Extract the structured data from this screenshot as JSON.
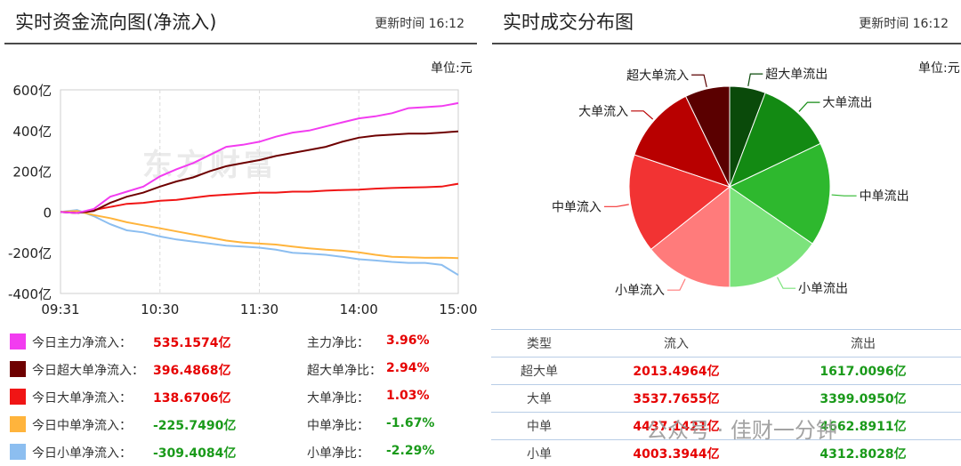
{
  "left": {
    "title": "实时资金流向图(净流入)",
    "update_time": "更新时间 16:12",
    "unit": "单位:元",
    "watermark": "东方财富",
    "legend": [
      {
        "label": "今日主力净流入：",
        "value": "535.1574亿",
        "color": "#f23cf0",
        "ratio_label": "主力净比：",
        "ratio": "3.96%",
        "sign": "pos"
      },
      {
        "label": "今日超大单净流入：",
        "value": "396.4868亿",
        "color": "#6e0000",
        "ratio_label": "超大单净比：",
        "ratio": "2.94%",
        "sign": "pos"
      },
      {
        "label": "今日大单净流入：",
        "value": "138.6706亿",
        "color": "#f01515",
        "ratio_label": "大单净比：",
        "ratio": "1.03%",
        "sign": "pos"
      },
      {
        "label": "今日中单净流入：",
        "value": "-225.7490亿",
        "color": "#ffb43c",
        "ratio_label": "中单净比：",
        "ratio": "-1.67%",
        "sign": "neg"
      },
      {
        "label": "今日小单净流入：",
        "value": "-309.4084亿",
        "color": "#8cbef0",
        "ratio_label": "小单净比：",
        "ratio": "-2.29%",
        "sign": "neg"
      }
    ]
  },
  "chart_data": [
    {
      "type": "line",
      "title": "",
      "x_ticks": [
        "09:31",
        "10:30",
        "11:30",
        "14:00",
        "15:00"
      ],
      "y_ticks": [
        "600亿",
        "400亿",
        "200亿",
        "0",
        "-200亿",
        "-400亿"
      ],
      "ylim": [
        -400,
        600
      ],
      "y_unit": "亿",
      "grid": true,
      "series": [
        {
          "name": "主力净流入",
          "color": "#f23cf0",
          "x": [
            0,
            10,
            20,
            30,
            40,
            50,
            60,
            70,
            80,
            90,
            100,
            110,
            120,
            130,
            140,
            150,
            160,
            170,
            180,
            190,
            200,
            210,
            220,
            230,
            240
          ],
          "values": [
            0,
            -5,
            15,
            75,
            100,
            125,
            175,
            210,
            240,
            280,
            320,
            330,
            345,
            370,
            390,
            400,
            420,
            440,
            460,
            470,
            485,
            510,
            515,
            520,
            535
          ]
        },
        {
          "name": "超大单净流入",
          "color": "#6e0000",
          "x": [
            0,
            10,
            20,
            30,
            40,
            50,
            60,
            70,
            80,
            90,
            100,
            110,
            120,
            130,
            140,
            150,
            160,
            170,
            180,
            190,
            200,
            210,
            220,
            230,
            240
          ],
          "values": [
            0,
            -5,
            5,
            45,
            75,
            95,
            125,
            150,
            170,
            200,
            225,
            240,
            255,
            275,
            290,
            305,
            320,
            345,
            365,
            375,
            380,
            385,
            385,
            390,
            396
          ]
        },
        {
          "name": "大单净流入",
          "color": "#f01515",
          "x": [
            0,
            10,
            20,
            30,
            40,
            50,
            60,
            70,
            80,
            90,
            100,
            110,
            120,
            130,
            140,
            150,
            160,
            170,
            180,
            190,
            200,
            210,
            220,
            230,
            240
          ],
          "values": [
            0,
            -5,
            10,
            25,
            40,
            45,
            55,
            60,
            70,
            80,
            85,
            90,
            95,
            95,
            100,
            100,
            105,
            108,
            110,
            115,
            118,
            120,
            122,
            125,
            139
          ]
        },
        {
          "name": "中单净流入",
          "color": "#ffb43c",
          "x": [
            0,
            10,
            20,
            30,
            40,
            50,
            60,
            70,
            80,
            90,
            100,
            110,
            120,
            130,
            140,
            150,
            160,
            170,
            180,
            190,
            200,
            210,
            220,
            230,
            240
          ],
          "values": [
            0,
            5,
            -15,
            -30,
            -50,
            -65,
            -80,
            -95,
            -110,
            -125,
            -140,
            -150,
            -155,
            -160,
            -170,
            -178,
            -185,
            -190,
            -198,
            -210,
            -220,
            -222,
            -225,
            -224,
            -226
          ]
        },
        {
          "name": "小单净流入",
          "color": "#8cbef0",
          "x": [
            0,
            10,
            20,
            30,
            40,
            50,
            60,
            70,
            80,
            90,
            100,
            110,
            120,
            130,
            140,
            150,
            160,
            170,
            180,
            190,
            200,
            210,
            220,
            230,
            240
          ],
          "values": [
            0,
            10,
            -20,
            -60,
            -90,
            -100,
            -120,
            -135,
            -145,
            -155,
            -165,
            -170,
            -175,
            -185,
            -200,
            -205,
            -210,
            -220,
            -232,
            -238,
            -245,
            -250,
            -250,
            -260,
            -309
          ]
        }
      ]
    },
    {
      "type": "pie",
      "title": "",
      "slices": [
        {
          "label": "超大单流出",
          "value": 1617.0096,
          "color": "#0a4a0a"
        },
        {
          "label": "大单流出",
          "value": 3399.095,
          "color": "#138a13"
        },
        {
          "label": "中单流出",
          "value": 4662.8911,
          "color": "#2eb82e"
        },
        {
          "label": "小单流出",
          "value": 4312.8028,
          "color": "#7ce37c"
        },
        {
          "label": "小单流入",
          "value": 4003.3944,
          "color": "#ff7b7b"
        },
        {
          "label": "中单流入",
          "value": 4437.1421,
          "color": "#f23333"
        },
        {
          "label": "大单流入",
          "value": 3537.7655,
          "color": "#b80000"
        },
        {
          "label": "超大单流入",
          "value": 2013.4964,
          "color": "#5a0000"
        }
      ]
    }
  ],
  "right": {
    "title": "实时成交分布图",
    "update_time": "更新时间 16:12",
    "unit": "单位:元",
    "table": {
      "headers": [
        "类型",
        "流入",
        "流出"
      ],
      "rows": [
        {
          "type": "超大单",
          "in": "2013.4964亿",
          "out": "1617.0096亿"
        },
        {
          "type": "大单",
          "in": "3537.7655亿",
          "out": "3399.0950亿"
        },
        {
          "type": "中单",
          "in": "4437.1421亿",
          "out": "4662.8911亿"
        },
        {
          "type": "小单",
          "in": "4003.3944亿",
          "out": "4312.8028亿"
        }
      ]
    },
    "watermark": "公众号 · 佳财一分钟"
  }
}
